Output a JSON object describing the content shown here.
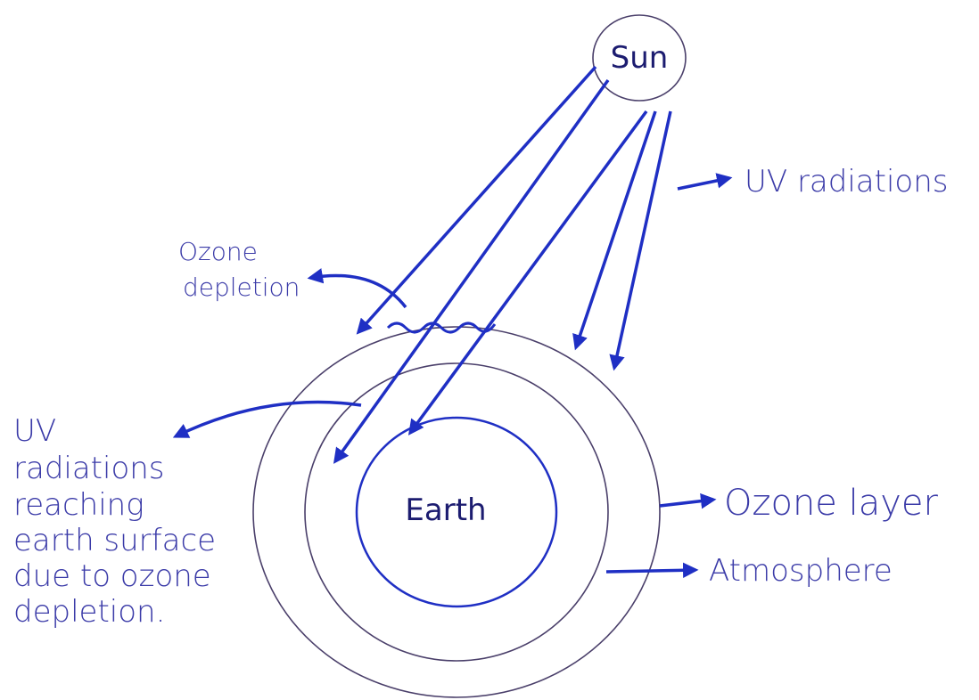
{
  "nodes": [
    {
      "label": "Sun"
    },
    {
      "label": "Earth"
    }
  ],
  "annotations": [
    {
      "lines": [
        "UV radiations"
      ]
    },
    {
      "lines": [
        "Ozone",
        "depletion"
      ]
    },
    {
      "lines": [
        "UV",
        "radiations",
        "reaching",
        "earth surface",
        "due to ozone",
        "depletion."
      ]
    },
    {
      "lines": [
        "Ozone layer"
      ]
    },
    {
      "lines": [
        "Atmosphere"
      ]
    }
  ]
}
